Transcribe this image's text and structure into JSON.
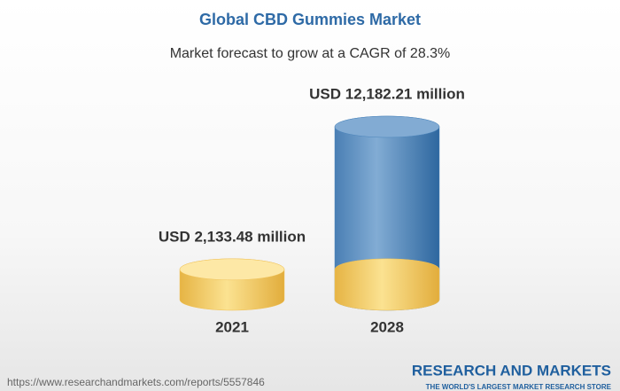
{
  "chart_data": {
    "type": "cylinder",
    "title": "Global CBD Gummies Market",
    "subtitle": "Market forecast to grow at a CAGR of 28.3%",
    "categories": [
      "2021",
      "2028"
    ],
    "values": [
      2133.48,
      12182.21
    ],
    "value_labels": [
      "USD 2,133.48 million",
      "USD 12,182.21 million"
    ],
    "colors": [
      "#f0c157",
      "#4a84bb"
    ],
    "source": "https://www.researchandmarkets.com/reports/5557846",
    "brand": "RESEARCH AND MARKETS",
    "tagline": "THE WORLD'S LARGEST MARKET RESEARCH STORE"
  }
}
